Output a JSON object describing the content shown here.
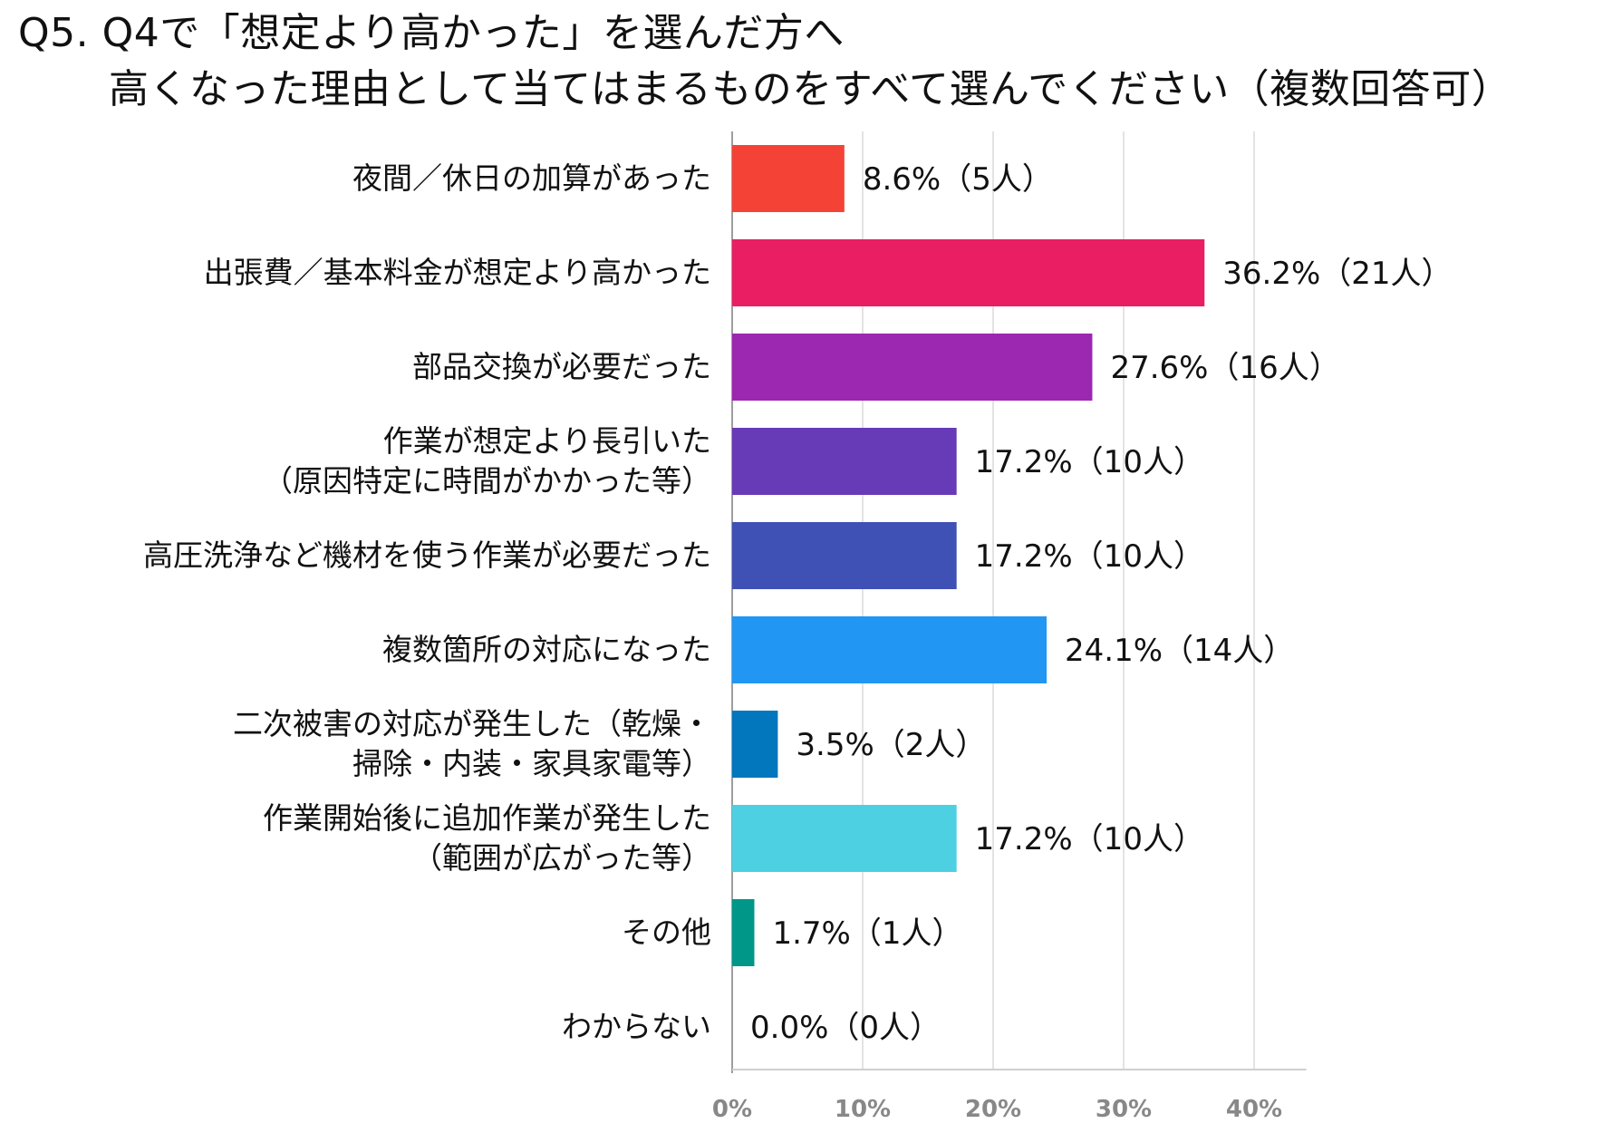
{
  "title": {
    "line1": "Q5. Q4で「想定より高かった」を選んだ方へ",
    "line2": "高くなった理由として当てはまるものをすべて選んでください（複数回答可）"
  },
  "chart_data": {
    "type": "bar",
    "orientation": "horizontal",
    "categories": [
      [
        "夜間／休日の加算があった"
      ],
      [
        "出張費／基本料金が想定より高かった"
      ],
      [
        "部品交換が必要だった"
      ],
      [
        "作業が想定より長引いた",
        "（原因特定に時間がかかった等）"
      ],
      [
        "高圧洗浄など機材を使う作業が必要だった"
      ],
      [
        "複数箇所の対応になった"
      ],
      [
        "二次被害の対応が発生した（乾燥・",
        "掃除・内装・家具家電等）"
      ],
      [
        "作業開始後に追加作業が発生した",
        "（範囲が広がった等）"
      ],
      [
        "その他"
      ],
      [
        "わからない"
      ]
    ],
    "values": [
      8.6,
      36.2,
      27.6,
      17.2,
      17.2,
      24.1,
      3.5,
      17.2,
      1.7,
      0.0
    ],
    "data_labels": [
      "8.6%（5人）",
      "36.2%（21人）",
      "27.6%（16人）",
      "17.2%（10人）",
      "17.2%（10人）",
      "24.1%（14人）",
      "3.5%（2人）",
      "17.2%（10人）",
      "1.7%（1人）",
      "0.0%（0人）"
    ],
    "colors": [
      "#f44336",
      "#e91e63",
      "#9c27b0",
      "#673ab7",
      "#3f51b5",
      "#2196f3",
      "#0277bd",
      "#4dd0e1",
      "#009688",
      "#cccccc"
    ],
    "xlim": [
      0,
      44
    ],
    "xticks": [
      0,
      10,
      20,
      30,
      40
    ],
    "xtick_labels": [
      "0%",
      "10%",
      "20%",
      "30%",
      "40%"
    ],
    "grid": true,
    "legend": "none"
  }
}
